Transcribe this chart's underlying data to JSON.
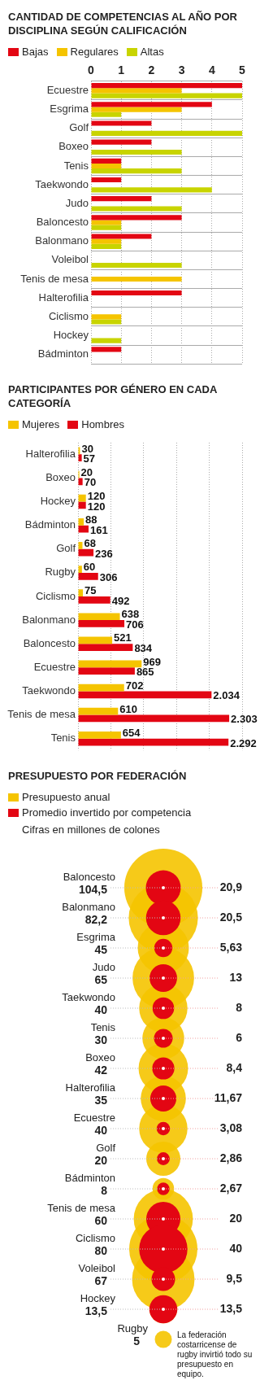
{
  "chart_data": [
    {
      "type": "bar",
      "orientation": "horizontal",
      "title": "CANTIDAD DE COMPETENCIAS AL AÑO POR DISCIPLINA SEGÚN CALIFICACIÓN",
      "legend": "top left",
      "grid": true,
      "categories": [
        "Ecuestre",
        "Esgrima",
        "Golf",
        "Boxeo",
        "Tenis",
        "Taekwondo",
        "Judo",
        "Baloncesto",
        "Balonmano",
        "Voleibol",
        "Tenis de mesa",
        "Halterofilia",
        "Ciclismo",
        "Hockey",
        "Bádminton"
      ],
      "xlim": [
        0,
        5
      ],
      "xticks": [
        0,
        1,
        2,
        3,
        4,
        5
      ],
      "series": [
        {
          "name": "Bajas",
          "color": "#e30613",
          "values": [
            5,
            4,
            2,
            2,
            1,
            1,
            2,
            3,
            2,
            0,
            0,
            3,
            0,
            0,
            1
          ]
        },
        {
          "name": "Regulares",
          "color": "#f5c400",
          "values": [
            3,
            3,
            0,
            0,
            1,
            0,
            0,
            1,
            1,
            0,
            3,
            0,
            1,
            0,
            0
          ]
        },
        {
          "name": "Altas",
          "color": "#c8d400",
          "values": [
            5,
            1,
            5,
            3,
            3,
            4,
            3,
            1,
            1,
            3,
            0,
            0,
            1,
            1,
            0
          ]
        }
      ]
    },
    {
      "type": "bar",
      "orientation": "horizontal",
      "title": "PARTICIPANTES POR GÉNERO EN CADA CATEGORÍA",
      "legend": "top left",
      "grid": "x",
      "tick_labels": "y",
      "categories": [
        "Halterofilia",
        "Boxeo",
        "Hockey",
        "Bádminton",
        "Golf",
        "Rugby",
        "Ciclismo",
        "Balonmano",
        "Baloncesto",
        "Ecuestre",
        "Taekwondo",
        "Tenis de mesa",
        "Tenis"
      ],
      "series": [
        {
          "name": "Mujeres",
          "color": "#f5c400",
          "values": [
            30,
            20,
            120,
            88,
            68,
            60,
            75,
            638,
            521,
            969,
            702,
            610,
            654
          ],
          "value_labels": [
            "30",
            "20",
            "120",
            "88",
            "68",
            "60",
            "75",
            "638",
            "521",
            "969",
            "702",
            "610",
            "654"
          ]
        },
        {
          "name": "Hombres",
          "color": "#e30613",
          "values": [
            57,
            70,
            120,
            161,
            236,
            306,
            492,
            706,
            834,
            865,
            2034,
            2303,
            2292
          ],
          "value_labels": [
            "57",
            "70",
            "120",
            "161",
            "236",
            "306",
            "492",
            "706",
            "834",
            "865",
            "2.034",
            "2.303",
            "2.292"
          ]
        }
      ]
    },
    {
      "type": "other",
      "title": "PRESUPUESTO POR FEDERACIÓN",
      "subtitle": "Cifras en millones de colones",
      "legend": "top left",
      "categories": [
        "Baloncesto",
        "Balonmano",
        "Esgrima",
        "Judo",
        "Taekwondo",
        "Tenis",
        "Boxeo",
        "Halterofilia",
        "Ecuestre",
        "Golf",
        "Bádminton",
        "Tenis de mesa",
        "Ciclismo",
        "Voleibol",
        "Hockey",
        "Rugby"
      ],
      "series": [
        {
          "name": "Presupuesto anual",
          "color": "#f5c400",
          "values": [
            104.5,
            82.2,
            45,
            65,
            40,
            30,
            42,
            35,
            40,
            20,
            8,
            60,
            80,
            67,
            13.5,
            5
          ],
          "value_labels": [
            "104,5",
            "82,2",
            "45",
            "65",
            "40",
            "30",
            "42",
            "35",
            "40",
            "20",
            "8",
            "60",
            "80",
            "67",
            "13,5",
            "5"
          ]
        },
        {
          "name": "Promedio invertido por competencia",
          "color": "#e30613",
          "values": [
            20.9,
            20.5,
            5.63,
            13,
            8,
            6,
            8.4,
            11.67,
            3.08,
            2.86,
            2.67,
            20,
            40,
            9.5,
            13.5,
            null
          ],
          "value_labels": [
            "20,9",
            "20,5",
            "5,63",
            "13",
            "8",
            "6",
            "8,4",
            "11,67",
            "3,08",
            "2,86",
            "2,67",
            "20",
            "40",
            "9,5",
            "13,5",
            null
          ]
        }
      ],
      "annotations": [
        "La federación costarricense de rugby invirtió todo su presupuesto en equipo."
      ]
    }
  ]
}
